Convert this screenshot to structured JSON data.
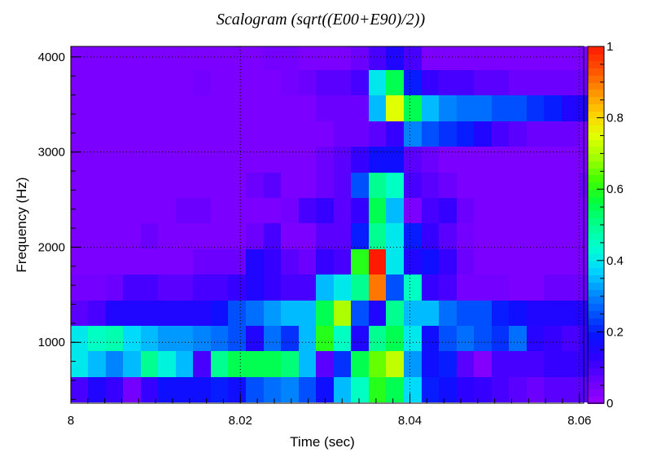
{
  "chart_data": {
    "type": "heatmap",
    "title": "Scalogram (sqrt((E00+E90)/2))",
    "xlabel": "Time (sec)",
    "ylabel": "Frequency (Hz)",
    "xlim": [
      8.0,
      8.0605
    ],
    "ylim": [
      360,
      4110
    ],
    "x_ticks": [
      8.0,
      8.02,
      8.04,
      8.06
    ],
    "x_tick_labels": [
      "8",
      "8.02",
      "8.04",
      "8.06"
    ],
    "y_ticks": [
      1000,
      2000,
      3000,
      4000
    ],
    "y_tick_labels": [
      "1000",
      "2000",
      "3000",
      "4000"
    ],
    "grid": true,
    "x_bins": {
      "start": 8.0,
      "width": 0.00207,
      "count": 30
    },
    "y_bins": {
      "start": 370,
      "width": 269,
      "count": 14
    },
    "values": [
      [
        0.1,
        0.15,
        0.12,
        0.05,
        0.12,
        0.18,
        0.18,
        0.18,
        0.2,
        0.18,
        0.25,
        0.28,
        0.3,
        0.25,
        0.18,
        0.35,
        0.45,
        0.6,
        0.55,
        0.38,
        0.2,
        0.18,
        0.13,
        0.12,
        0.1,
        0.08,
        0.06,
        0.08,
        0.08,
        0.08
      ],
      [
        0.4,
        0.35,
        0.3,
        0.35,
        0.5,
        0.42,
        0.35,
        0.1,
        0.5,
        0.55,
        0.55,
        0.55,
        0.52,
        0.35,
        0.08,
        0.22,
        0.55,
        0.65,
        0.72,
        0.32,
        0.18,
        0.2,
        0.08,
        0.03,
        0.1,
        0.1,
        0.1,
        0.12,
        0.12,
        0.12
      ],
      [
        0.4,
        0.45,
        0.47,
        0.38,
        0.35,
        0.32,
        0.32,
        0.3,
        0.28,
        0.25,
        0.15,
        0.28,
        0.22,
        0.35,
        0.6,
        0.45,
        0.15,
        0.5,
        0.55,
        0.4,
        0.18,
        0.25,
        0.28,
        0.25,
        0.22,
        0.28,
        0.14,
        0.12,
        0.1,
        0.12
      ],
      [
        0.08,
        0.1,
        0.15,
        0.15,
        0.15,
        0.15,
        0.15,
        0.15,
        0.18,
        0.25,
        0.28,
        0.32,
        0.35,
        0.35,
        0.55,
        0.7,
        0.25,
        0.15,
        0.5,
        0.35,
        0.35,
        0.28,
        0.25,
        0.25,
        0.2,
        0.18,
        0.15,
        0.15,
        0.15,
        0.14
      ],
      [
        0.05,
        0.05,
        0.06,
        0.1,
        0.1,
        0.08,
        0.08,
        0.1,
        0.1,
        0.12,
        0.15,
        0.12,
        0.1,
        0.1,
        0.35,
        0.4,
        0.5,
        0.9,
        0.25,
        0.45,
        0.12,
        0.1,
        0.05,
        0.05,
        0.05,
        0.04,
        0.04,
        0.06,
        0.06,
        0.06
      ],
      [
        0.04,
        0.04,
        0.04,
        0.04,
        0.04,
        0.04,
        0.04,
        0.06,
        0.06,
        0.06,
        0.15,
        0.12,
        0.08,
        0.06,
        0.12,
        0.1,
        0.6,
        1.0,
        0.4,
        0.15,
        0.18,
        0.12,
        0.06,
        0.04,
        0.04,
        0.04,
        0.04,
        0.04,
        0.04,
        0.04
      ],
      [
        0.04,
        0.04,
        0.04,
        0.04,
        0.06,
        0.04,
        0.04,
        0.04,
        0.04,
        0.04,
        0.06,
        0.1,
        0.04,
        0.04,
        0.08,
        0.08,
        0.2,
        0.5,
        0.4,
        0.2,
        0.12,
        0.08,
        0.05,
        0.04,
        0.04,
        0.04,
        0.04,
        0.04,
        0.04,
        0.04
      ],
      [
        0.04,
        0.04,
        0.04,
        0.04,
        0.04,
        0.04,
        0.06,
        0.06,
        0.04,
        0.04,
        0.04,
        0.04,
        0.05,
        0.1,
        0.12,
        0.08,
        0.12,
        0.55,
        0.35,
        0.04,
        0.1,
        0.12,
        0.06,
        0.04,
        0.04,
        0.04,
        0.04,
        0.04,
        0.04,
        0.04
      ],
      [
        0.04,
        0.04,
        0.04,
        0.04,
        0.04,
        0.04,
        0.04,
        0.04,
        0.04,
        0.04,
        0.06,
        0.08,
        0.04,
        0.04,
        0.06,
        0.08,
        0.25,
        0.5,
        0.45,
        0.1,
        0.08,
        0.06,
        0.04,
        0.04,
        0.04,
        0.04,
        0.04,
        0.04,
        0.04,
        0.06
      ],
      [
        0.04,
        0.04,
        0.04,
        0.04,
        0.04,
        0.04,
        0.04,
        0.04,
        0.04,
        0.04,
        0.04,
        0.04,
        0.04,
        0.04,
        0.06,
        0.08,
        0.12,
        0.18,
        0.18,
        0.08,
        0.06,
        0.04,
        0.04,
        0.04,
        0.04,
        0.04,
        0.04,
        0.04,
        0.04,
        0.04
      ],
      [
        0.04,
        0.04,
        0.04,
        0.04,
        0.04,
        0.04,
        0.04,
        0.04,
        0.04,
        0.04,
        0.04,
        0.04,
        0.04,
        0.04,
        0.04,
        0.06,
        0.06,
        0.08,
        0.12,
        0.3,
        0.25,
        0.22,
        0.2,
        0.15,
        0.1,
        0.08,
        0.06,
        0.06,
        0.06,
        0.04
      ],
      [
        0.04,
        0.04,
        0.04,
        0.04,
        0.04,
        0.04,
        0.04,
        0.04,
        0.04,
        0.04,
        0.04,
        0.04,
        0.04,
        0.04,
        0.06,
        0.06,
        0.06,
        0.35,
        0.75,
        0.55,
        0.35,
        0.3,
        0.28,
        0.28,
        0.25,
        0.25,
        0.22,
        0.2,
        0.15,
        0.15
      ],
      [
        0.04,
        0.04,
        0.04,
        0.04,
        0.04,
        0.04,
        0.04,
        0.05,
        0.04,
        0.04,
        0.04,
        0.04,
        0.05,
        0.06,
        0.08,
        0.08,
        0.1,
        0.4,
        0.55,
        0.2,
        0.12,
        0.1,
        0.1,
        0.08,
        0.08,
        0.06,
        0.06,
        0.06,
        0.06,
        0.06
      ],
      [
        0.04,
        0.04,
        0.04,
        0.04,
        0.04,
        0.04,
        0.04,
        0.04,
        0.04,
        0.04,
        0.04,
        0.05,
        0.05,
        0.04,
        0.04,
        0.04,
        0.06,
        0.1,
        0.15,
        0.1,
        0.04,
        0.04,
        0.04,
        0.04,
        0.04,
        0.04,
        0.04,
        0.04,
        0.04,
        0.04
      ]
    ],
    "color_scale": {
      "min": 0,
      "max": 1,
      "ticks": [
        0,
        0.2,
        0.4,
        0.6,
        0.8,
        1
      ],
      "tick_labels": [
        "0",
        "0.2",
        "0.4",
        "0.6",
        "0.8",
        "1"
      ],
      "palette": [
        "#9a00ff",
        "#6a00ff",
        "#3000ff",
        "#0a10ff",
        "#0050ff",
        "#0090ff",
        "#00d8ff",
        "#00ffd0",
        "#00ff90",
        "#00ff40",
        "#40ff00",
        "#a0ff00",
        "#e0ff00",
        "#ffd000",
        "#ff9000",
        "#ff5000",
        "#ff1a00"
      ]
    }
  }
}
